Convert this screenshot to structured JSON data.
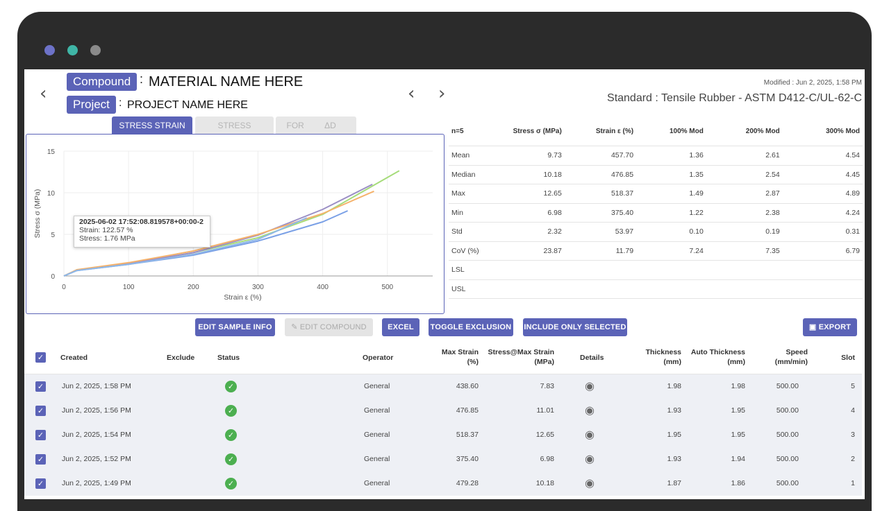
{
  "window": {
    "dots": [
      "#6d72c8",
      "#3fb5a6",
      "#8a8a8a"
    ]
  },
  "header": {
    "compound_label": "Compound",
    "compound_value": "MATERIAL NAME HERE",
    "project_label": "Project",
    "project_value": "PROJECT NAME HERE",
    "colon": ":",
    "modified": "Modified : Jun 2, 2025, 1:58 PM",
    "standard": "Standard : Tensile Rubber - ASTM D412-C/UL-62-C"
  },
  "tabs": [
    "STRESS STRAIN",
    "STRESS",
    "FORCE",
    "ΔD"
  ],
  "chart_data": {
    "type": "line",
    "xlabel": "Strain ε (%)",
    "ylabel": "Stress σ (MPa)",
    "xlim": [
      0,
      570
    ],
    "ylim": [
      0,
      15
    ],
    "xticks": [
      0,
      100,
      200,
      300,
      400,
      500
    ],
    "yticks": [
      0,
      5,
      10,
      15
    ],
    "grid": true,
    "series": [
      {
        "color": "#a6dc7a",
        "x": [
          0,
          20,
          100,
          200,
          300,
          400,
          518.37
        ],
        "y": [
          0,
          0.7,
          1.5,
          2.8,
          4.6,
          7.4,
          12.65
        ]
      },
      {
        "color": "#9b8fc5",
        "x": [
          0,
          20,
          100,
          200,
          300,
          400,
          476.85
        ],
        "y": [
          0,
          0.7,
          1.5,
          2.8,
          4.9,
          8.0,
          11.01
        ]
      },
      {
        "color": "#f5b26b",
        "x": [
          0,
          20,
          100,
          200,
          300,
          400,
          479.28
        ],
        "y": [
          0,
          0.75,
          1.6,
          3.0,
          5.0,
          7.5,
          10.18
        ]
      },
      {
        "color": "#7aa0e6",
        "x": [
          0,
          20,
          100,
          200,
          300,
          400,
          438.6
        ],
        "y": [
          0,
          0.65,
          1.4,
          2.5,
          4.2,
          6.5,
          7.83
        ]
      },
      {
        "color": "#8fb8e8",
        "x": [
          0,
          20,
          100,
          200,
          300,
          375.4
        ],
        "y": [
          0,
          0.65,
          1.4,
          2.6,
          4.4,
          6.98
        ]
      }
    ],
    "tooltip": {
      "title": "2025-06-02 17:52:08.819578+00:00-2",
      "strain": "Strain: 122.57 %",
      "stress": "Stress: 1.76 MPa"
    }
  },
  "summary": {
    "headers": [
      "n=5",
      "Stress σ (MPa)",
      "Strain ε (%)",
      "100% Mod",
      "200% Mod",
      "300% Mod"
    ],
    "rows": [
      [
        "Mean",
        "9.73",
        "457.70",
        "1.36",
        "2.61",
        "4.54"
      ],
      [
        "Median",
        "10.18",
        "476.85",
        "1.35",
        "2.54",
        "4.45"
      ],
      [
        "Max",
        "12.65",
        "518.37",
        "1.49",
        "2.87",
        "4.89"
      ],
      [
        "Min",
        "6.98",
        "375.40",
        "1.22",
        "2.38",
        "4.24"
      ],
      [
        "Std",
        "2.32",
        "53.97",
        "0.10",
        "0.19",
        "0.31"
      ],
      [
        "CoV (%)",
        "23.87",
        "11.79",
        "7.24",
        "7.35",
        "6.79"
      ],
      [
        "LSL",
        "",
        "",
        "",
        "",
        ""
      ],
      [
        "USL",
        "",
        "",
        "",
        "",
        ""
      ]
    ]
  },
  "toolbar": {
    "edit_sample": "EDIT SAMPLE INFO",
    "edit_compound": "EDIT COMPOUND",
    "excel": "EXCEL",
    "toggle": "TOGGLE EXCLUSION",
    "include": "INCLUDE ONLY SELECTED",
    "export": "EXPORT"
  },
  "table": {
    "headers": {
      "created": "Created",
      "exclude": "Exclude",
      "status": "Status",
      "operator": "Operator",
      "max_strain": "Max Strain (%)",
      "stress_max": "Stress@Max Strain (MPa)",
      "details": "Details",
      "thickness": "Thickness (mm)",
      "auto_thickness": "Auto Thickness (mm)",
      "speed": "Speed (mm/min)",
      "slot": "Slot"
    },
    "rows": [
      {
        "created": "Jun 2, 2025, 1:58 PM",
        "operator": "General",
        "max_strain": "438.60",
        "stress": "7.83",
        "thickness": "1.98",
        "auto": "1.98",
        "speed": "500.00",
        "slot": "5"
      },
      {
        "created": "Jun 2, 2025, 1:56 PM",
        "operator": "General",
        "max_strain": "476.85",
        "stress": "11.01",
        "thickness": "1.93",
        "auto": "1.95",
        "speed": "500.00",
        "slot": "4"
      },
      {
        "created": "Jun 2, 2025, 1:54 PM",
        "operator": "General",
        "max_strain": "518.37",
        "stress": "12.65",
        "thickness": "1.95",
        "auto": "1.95",
        "speed": "500.00",
        "slot": "3"
      },
      {
        "created": "Jun 2, 2025, 1:52 PM",
        "operator": "General",
        "max_strain": "375.40",
        "stress": "6.98",
        "thickness": "1.93",
        "auto": "1.94",
        "speed": "500.00",
        "slot": "2"
      },
      {
        "created": "Jun 2, 2025, 1:49 PM",
        "operator": "General",
        "max_strain": "479.28",
        "stress": "10.18",
        "thickness": "1.87",
        "auto": "1.86",
        "speed": "500.00",
        "slot": "1"
      }
    ]
  }
}
